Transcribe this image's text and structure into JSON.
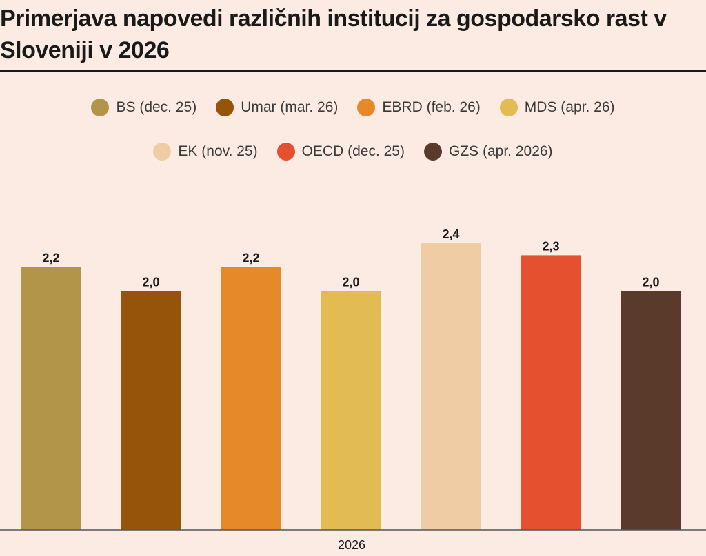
{
  "chart_data": {
    "type": "bar",
    "title": "Primerjava napovedi različnih institucij za gospodarsko rast v Sloveniji v 2026",
    "categories": [
      "2026"
    ],
    "xlabel": "",
    "ylabel": "",
    "ylim": [
      0,
      2.4
    ],
    "grid": false,
    "legend_position": "top-center",
    "series": [
      {
        "name": "BS (dec. 25)",
        "values": [
          2.2
        ],
        "label": "2,2",
        "color": "#b3954a"
      },
      {
        "name": "Umar (mar. 26)",
        "values": [
          2.0
        ],
        "label": "2,0",
        "color": "#96540b"
      },
      {
        "name": "EBRD (feb. 26)",
        "values": [
          2.2
        ],
        "label": "2,2",
        "color": "#e68a29"
      },
      {
        "name": "MDS (apr. 26)",
        "values": [
          2.0
        ],
        "label": "2,0",
        "color": "#e2bb52"
      },
      {
        "name": "EK (nov. 25)",
        "values": [
          2.4
        ],
        "label": "2,4",
        "color": "#efcca4"
      },
      {
        "name": "OECD (dec. 25)",
        "values": [
          2.3
        ],
        "label": "2,3",
        "color": "#e5502e"
      },
      {
        "name": "GZS (apr. 2026)",
        "values": [
          2.0
        ],
        "label": "2,0",
        "color": "#5a3a2b"
      }
    ]
  },
  "colors": {
    "background": "#fcebe2",
    "text": "#1a1a1a",
    "axis": "#555555"
  }
}
